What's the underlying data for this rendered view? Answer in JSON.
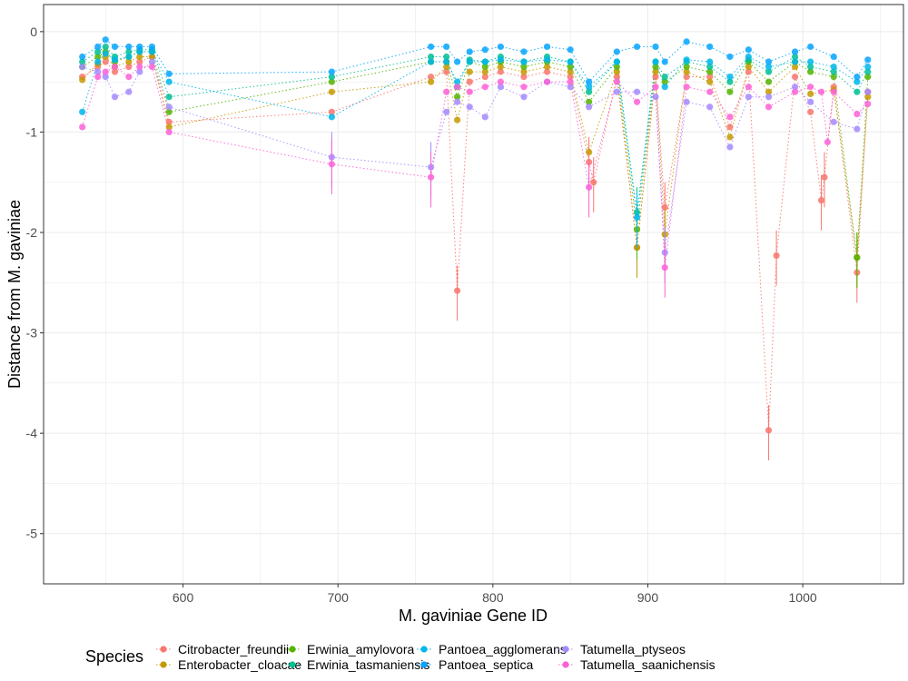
{
  "chart_data": {
    "type": "scatter",
    "xlabel": "M. gaviniae Gene ID",
    "ylabel": "Distance from M. gaviniae",
    "xlim": [
      510,
      1065
    ],
    "ylim": [
      -5.5,
      0.27
    ],
    "x_ticks": [
      600,
      700,
      800,
      900,
      1000
    ],
    "y_ticks": [
      0,
      -1,
      -2,
      -3,
      -4,
      -5
    ],
    "x_tick_labels": [
      "600",
      "700",
      "800",
      "900",
      "1000"
    ],
    "y_tick_labels": [
      "0",
      "-1",
      "-2",
      "-3",
      "-4",
      "-5"
    ],
    "grid": true,
    "legend": {
      "title": "Species",
      "position": "bottom",
      "columns": [
        [
          "Citrobacter_freundii",
          "Enterobacter_cloacae"
        ],
        [
          "Erwinia_amylovora",
          "Erwinia_tasmaniensis"
        ],
        [
          "Pantoea_agglomerans",
          "Pantoea_septica"
        ],
        [
          "Tatumella_ptyseos",
          "Tatumella_saanichensis"
        ]
      ]
    },
    "series": [
      {
        "name": "Citrobacter_freundii",
        "color": "#F8766D",
        "points": [
          [
            535,
            -0.45
          ],
          [
            545,
            -0.35
          ],
          [
            550,
            -0.3
          ],
          [
            556,
            -0.4
          ],
          [
            565,
            -0.35
          ],
          [
            572,
            -0.3
          ],
          [
            580,
            -0.25
          ],
          [
            591,
            -0.9
          ],
          [
            696,
            -0.8
          ],
          [
            760,
            -0.45
          ],
          [
            770,
            -0.4
          ],
          [
            777,
            -2.58
          ],
          [
            785,
            -0.5
          ],
          [
            795,
            -0.45
          ],
          [
            805,
            -0.4
          ],
          [
            820,
            -0.45
          ],
          [
            835,
            -0.4
          ],
          [
            850,
            -0.45
          ],
          [
            862,
            -1.3
          ],
          [
            865,
            -1.5
          ],
          [
            880,
            -0.45
          ],
          [
            893,
            -2.15
          ],
          [
            905,
            -0.45
          ],
          [
            911,
            -1.75
          ],
          [
            925,
            -0.45
          ],
          [
            940,
            -0.45
          ],
          [
            953,
            -0.95
          ],
          [
            965,
            -0.4
          ],
          [
            978,
            -3.97
          ],
          [
            983,
            -2.23
          ],
          [
            995,
            -0.45
          ],
          [
            1005,
            -0.8
          ],
          [
            1012,
            -1.68
          ],
          [
            1014,
            -1.45
          ],
          [
            1020,
            -0.55
          ],
          [
            1035,
            -2.4
          ],
          [
            1042,
            -0.6
          ]
        ]
      },
      {
        "name": "Enterobacter_cloacae",
        "color": "#C49A00",
        "points": [
          [
            535,
            -0.48
          ],
          [
            545,
            -0.32
          ],
          [
            550,
            -0.25
          ],
          [
            556,
            -0.35
          ],
          [
            565,
            -0.3
          ],
          [
            572,
            -0.25
          ],
          [
            580,
            -0.25
          ],
          [
            591,
            -0.95
          ],
          [
            696,
            -0.6
          ],
          [
            760,
            -0.5
          ],
          [
            770,
            -0.35
          ],
          [
            777,
            -0.88
          ],
          [
            785,
            -0.4
          ],
          [
            795,
            -0.4
          ],
          [
            805,
            -0.35
          ],
          [
            820,
            -0.4
          ],
          [
            835,
            -0.35
          ],
          [
            850,
            -0.4
          ],
          [
            862,
            -1.2
          ],
          [
            880,
            -0.4
          ],
          [
            893,
            -2.15
          ],
          [
            905,
            -0.4
          ],
          [
            911,
            -2.02
          ],
          [
            925,
            -0.4
          ],
          [
            940,
            -0.5
          ],
          [
            953,
            -1.05
          ],
          [
            965,
            -0.35
          ],
          [
            978,
            -0.6
          ],
          [
            995,
            -0.35
          ],
          [
            1005,
            -0.62
          ],
          [
            1020,
            -0.58
          ],
          [
            1035,
            -2.25
          ],
          [
            1042,
            -0.65
          ]
        ]
      },
      {
        "name": "Erwinia_amylovora",
        "color": "#53B400",
        "points": [
          [
            535,
            -0.35
          ],
          [
            545,
            -0.25
          ],
          [
            550,
            -0.2
          ],
          [
            556,
            -0.3
          ],
          [
            565,
            -0.25
          ],
          [
            572,
            -0.2
          ],
          [
            580,
            -0.2
          ],
          [
            591,
            -0.8
          ],
          [
            696,
            -0.5
          ],
          [
            760,
            -0.3
          ],
          [
            770,
            -0.3
          ],
          [
            777,
            -0.65
          ],
          [
            785,
            -0.3
          ],
          [
            795,
            -0.35
          ],
          [
            805,
            -0.3
          ],
          [
            820,
            -0.35
          ],
          [
            835,
            -0.3
          ],
          [
            850,
            -0.35
          ],
          [
            862,
            -0.7
          ],
          [
            880,
            -0.35
          ],
          [
            893,
            -1.97
          ],
          [
            905,
            -0.35
          ],
          [
            911,
            -0.5
          ],
          [
            925,
            -0.35
          ],
          [
            940,
            -0.4
          ],
          [
            953,
            -0.6
          ],
          [
            965,
            -0.3
          ],
          [
            978,
            -0.5
          ],
          [
            995,
            -0.3
          ],
          [
            1005,
            -0.4
          ],
          [
            1020,
            -0.45
          ],
          [
            1035,
            -2.25
          ],
          [
            1042,
            -0.45
          ]
        ]
      },
      {
        "name": "Erwinia_tasmaniensis",
        "color": "#00C094",
        "points": [
          [
            535,
            -0.3
          ],
          [
            545,
            -0.2
          ],
          [
            550,
            -0.15
          ],
          [
            556,
            -0.25
          ],
          [
            565,
            -0.2
          ],
          [
            572,
            -0.18
          ],
          [
            580,
            -0.18
          ],
          [
            591,
            -0.65
          ],
          [
            696,
            -0.45
          ],
          [
            760,
            -0.25
          ],
          [
            770,
            -0.25
          ],
          [
            777,
            -0.55
          ],
          [
            785,
            -0.28
          ],
          [
            795,
            -0.3
          ],
          [
            805,
            -0.25
          ],
          [
            820,
            -0.3
          ],
          [
            835,
            -0.25
          ],
          [
            850,
            -0.3
          ],
          [
            862,
            -0.6
          ],
          [
            880,
            -0.3
          ],
          [
            893,
            -1.8
          ],
          [
            905,
            -0.3
          ],
          [
            911,
            -0.45
          ],
          [
            925,
            -0.3
          ],
          [
            940,
            -0.35
          ],
          [
            953,
            -0.5
          ],
          [
            965,
            -0.28
          ],
          [
            978,
            -0.4
          ],
          [
            995,
            -0.25
          ],
          [
            1005,
            -0.35
          ],
          [
            1020,
            -0.4
          ],
          [
            1035,
            -0.6
          ],
          [
            1042,
            -0.4
          ]
        ]
      },
      {
        "name": "Pantoea_agglomerans",
        "color": "#00B6EB",
        "points": [
          [
            535,
            -0.8
          ],
          [
            545,
            -0.3
          ],
          [
            550,
            -0.22
          ],
          [
            556,
            -0.28
          ],
          [
            565,
            -0.25
          ],
          [
            572,
            -0.2
          ],
          [
            580,
            -0.2
          ],
          [
            591,
            -0.5
          ],
          [
            696,
            -0.85
          ],
          [
            760,
            -0.3
          ],
          [
            770,
            -0.3
          ],
          [
            777,
            -0.5
          ],
          [
            785,
            -0.3
          ],
          [
            795,
            -0.3
          ],
          [
            805,
            -0.28
          ],
          [
            820,
            -0.3
          ],
          [
            835,
            -0.28
          ],
          [
            850,
            -0.3
          ],
          [
            862,
            -0.55
          ],
          [
            880,
            -0.3
          ],
          [
            893,
            -1.85
          ],
          [
            905,
            -0.3
          ],
          [
            911,
            -0.55
          ],
          [
            925,
            -0.28
          ],
          [
            940,
            -0.3
          ],
          [
            953,
            -0.45
          ],
          [
            965,
            -0.25
          ],
          [
            978,
            -0.35
          ],
          [
            995,
            -0.3
          ],
          [
            1005,
            -0.3
          ],
          [
            1020,
            -0.35
          ],
          [
            1035,
            -0.5
          ],
          [
            1042,
            -0.35
          ]
        ]
      },
      {
        "name": "Pantoea_septica",
        "color": "#06A4FF",
        "points": [
          [
            535,
            -0.25
          ],
          [
            545,
            -0.15
          ],
          [
            550,
            -0.08
          ],
          [
            556,
            -0.15
          ],
          [
            565,
            -0.15
          ],
          [
            572,
            -0.15
          ],
          [
            580,
            -0.15
          ],
          [
            591,
            -0.42
          ],
          [
            696,
            -0.4
          ],
          [
            760,
            -0.15
          ],
          [
            770,
            -0.15
          ],
          [
            777,
            -0.3
          ],
          [
            785,
            -0.2
          ],
          [
            795,
            -0.18
          ],
          [
            805,
            -0.15
          ],
          [
            820,
            -0.2
          ],
          [
            835,
            -0.15
          ],
          [
            850,
            -0.18
          ],
          [
            862,
            -0.5
          ],
          [
            880,
            -0.2
          ],
          [
            893,
            -0.15
          ],
          [
            905,
            -0.15
          ],
          [
            911,
            -0.3
          ],
          [
            925,
            -0.1
          ],
          [
            940,
            -0.15
          ],
          [
            953,
            -0.25
          ],
          [
            965,
            -0.18
          ],
          [
            978,
            -0.3
          ],
          [
            995,
            -0.2
          ],
          [
            1005,
            -0.15
          ],
          [
            1020,
            -0.25
          ],
          [
            1035,
            -0.45
          ],
          [
            1042,
            -0.28
          ]
        ]
      },
      {
        "name": "Tatumella_ptyseos",
        "color": "#A58AFF",
        "points": [
          [
            535,
            -0.35
          ],
          [
            545,
            -0.4
          ],
          [
            550,
            -0.45
          ],
          [
            556,
            -0.65
          ],
          [
            565,
            -0.6
          ],
          [
            572,
            -0.4
          ],
          [
            580,
            -0.3
          ],
          [
            591,
            -0.75
          ],
          [
            696,
            -1.25
          ],
          [
            760,
            -1.35
          ],
          [
            770,
            -0.8
          ],
          [
            777,
            -0.7
          ],
          [
            785,
            -0.75
          ],
          [
            795,
            -0.85
          ],
          [
            805,
            -0.55
          ],
          [
            820,
            -0.65
          ],
          [
            835,
            -0.5
          ],
          [
            850,
            -0.55
          ],
          [
            862,
            -0.75
          ],
          [
            880,
            -0.6
          ],
          [
            893,
            -0.6
          ],
          [
            905,
            -0.65
          ],
          [
            911,
            -2.2
          ],
          [
            925,
            -0.7
          ],
          [
            940,
            -0.75
          ],
          [
            953,
            -1.15
          ],
          [
            965,
            -0.65
          ],
          [
            978,
            -0.65
          ],
          [
            995,
            -0.55
          ],
          [
            1005,
            -0.7
          ],
          [
            1020,
            -0.9
          ],
          [
            1035,
            -0.97
          ],
          [
            1042,
            -0.6
          ]
        ]
      },
      {
        "name": "Tatumella_saanichensis",
        "color": "#FB61D7",
        "points": [
          [
            535,
            -0.95
          ],
          [
            545,
            -0.45
          ],
          [
            550,
            -0.4
          ],
          [
            556,
            -0.35
          ],
          [
            565,
            -0.45
          ],
          [
            572,
            -0.35
          ],
          [
            580,
            -0.35
          ],
          [
            591,
            -1.0
          ],
          [
            696,
            -1.32
          ],
          [
            760,
            -1.45
          ],
          [
            770,
            -0.6
          ],
          [
            777,
            -0.55
          ],
          [
            785,
            -0.6
          ],
          [
            795,
            -0.55
          ],
          [
            805,
            -0.5
          ],
          [
            820,
            -0.55
          ],
          [
            835,
            -0.5
          ],
          [
            850,
            -0.5
          ],
          [
            862,
            -1.55
          ],
          [
            880,
            -0.5
          ],
          [
            893,
            -0.7
          ],
          [
            905,
            -0.55
          ],
          [
            911,
            -2.35
          ],
          [
            925,
            -0.55
          ],
          [
            940,
            -0.6
          ],
          [
            953,
            -0.85
          ],
          [
            965,
            -0.55
          ],
          [
            978,
            -0.75
          ],
          [
            995,
            -0.6
          ],
          [
            1005,
            -0.55
          ],
          [
            1012,
            -0.6
          ],
          [
            1016,
            -1.1
          ],
          [
            1020,
            -0.6
          ],
          [
            1035,
            -0.82
          ],
          [
            1042,
            -0.72
          ]
        ]
      }
    ]
  }
}
